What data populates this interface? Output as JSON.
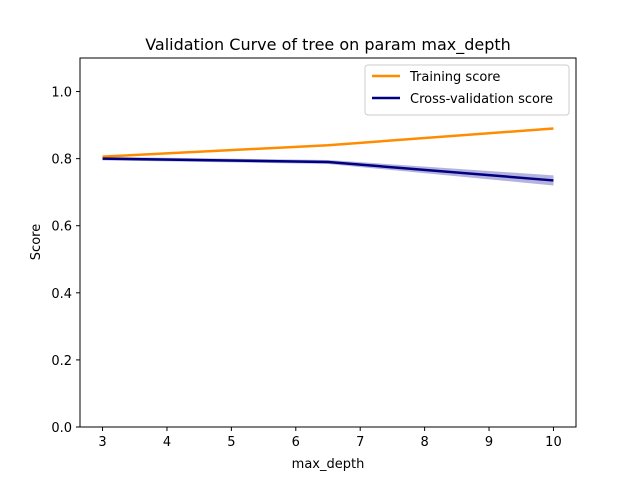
{
  "chart_data": {
    "type": "line",
    "title": "Validation Curve of tree on param max_depth",
    "xlabel": "max_depth",
    "ylabel": "Score",
    "xlim": [
      2.65,
      10.35
    ],
    "ylim": [
      0.0,
      1.1
    ],
    "xticks": [
      3,
      4,
      5,
      6,
      7,
      8,
      9,
      10
    ],
    "yticks": [
      0.0,
      0.2,
      0.4,
      0.6,
      0.8,
      1.0
    ],
    "ytick_labels": [
      "0.0",
      "0.2",
      "0.4",
      "0.6",
      "0.8",
      "1.0"
    ],
    "grid": false,
    "legend_position": "top-right",
    "series": [
      {
        "name": "Training score",
        "color": "#ff8c00",
        "x": [
          3,
          6.5,
          10
        ],
        "values": [
          0.806,
          0.84,
          0.89
        ],
        "band_low": [
          0.805,
          0.838,
          0.887
        ],
        "band_high": [
          0.807,
          0.842,
          0.893
        ]
      },
      {
        "name": "Cross-validation score",
        "color": "#000080",
        "band_color": "#8080c8",
        "x": [
          3,
          6.5,
          10
        ],
        "values": [
          0.8,
          0.79,
          0.735
        ],
        "band_low": [
          0.795,
          0.784,
          0.72
        ],
        "band_high": [
          0.805,
          0.796,
          0.75
        ]
      }
    ]
  }
}
